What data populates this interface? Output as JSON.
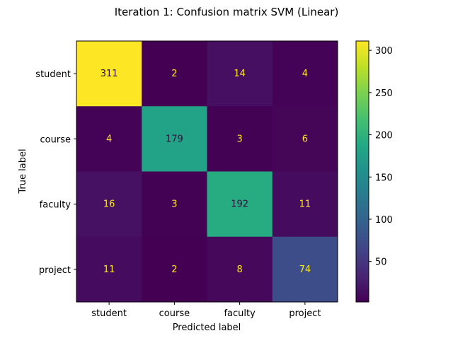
{
  "chart_data": {
    "type": "heatmap",
    "title": "Iteration 1: Confusion matrix SVM (Linear)",
    "xlabel": "Predicted label",
    "ylabel": "True label",
    "x_categories": [
      "student",
      "course",
      "faculty",
      "project"
    ],
    "y_categories": [
      "student",
      "course",
      "faculty",
      "project"
    ],
    "values": [
      [
        311,
        2,
        14,
        4
      ],
      [
        4,
        179,
        3,
        6
      ],
      [
        16,
        3,
        192,
        11
      ],
      [
        11,
        2,
        8,
        74
      ]
    ],
    "colormap": "viridis",
    "colorbar": {
      "range": [
        2,
        311
      ],
      "ticks": [
        50,
        100,
        150,
        200,
        250,
        300
      ]
    },
    "grid": false
  }
}
